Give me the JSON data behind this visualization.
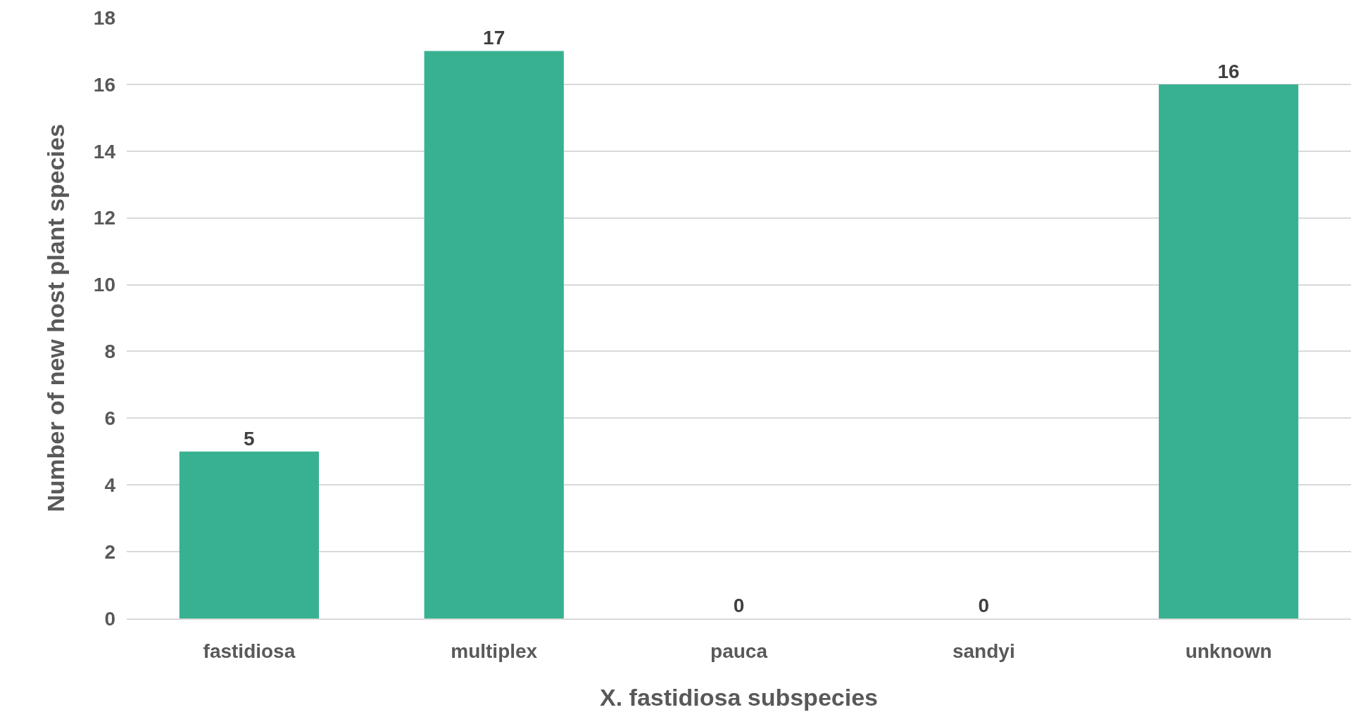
{
  "chart_data": {
    "type": "bar",
    "xlabel": "X. fastidiosa subspecies",
    "ylabel": "Number of new host plant species",
    "categories": [
      "fastidiosa",
      "multiplex",
      "pauca",
      "sandyi",
      "unknown"
    ],
    "values": [
      5,
      17,
      0,
      0,
      16
    ],
    "color": "#38b191",
    "ylim": [
      0,
      18
    ],
    "yticks": [
      0,
      2,
      4,
      6,
      8,
      10,
      12,
      14,
      16,
      18
    ],
    "grid": "y",
    "data_labels": true,
    "legend": false
  }
}
